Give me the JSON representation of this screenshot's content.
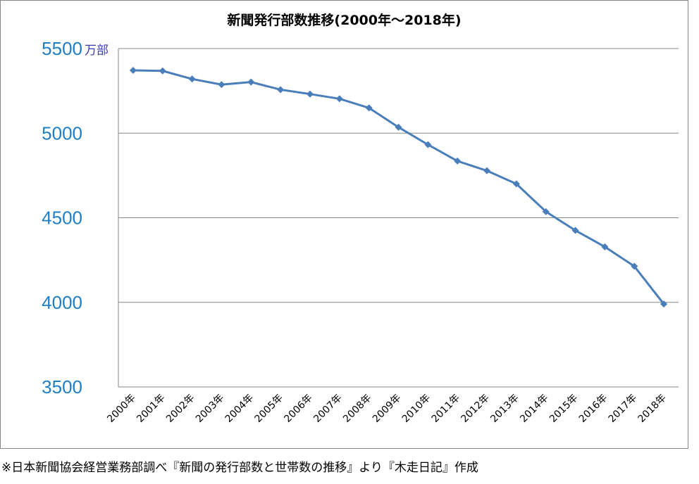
{
  "chart_data": {
    "type": "line",
    "title": "新聞発行部数推移(2000年～2018年)",
    "xlabel": "",
    "ylabel": "",
    "y_unit": "万部",
    "categories": [
      "2000年",
      "2001年",
      "2002年",
      "2003年",
      "2004年",
      "2005年",
      "2006年",
      "2007年",
      "2008年",
      "2009年",
      "2010年",
      "2011年",
      "2012年",
      "2013年",
      "2014年",
      "2015年",
      "2016年",
      "2017年",
      "2018年"
    ],
    "series": [
      {
        "name": "新聞発行部数",
        "color": "#4a7ebb",
        "marker": "diamond",
        "values": [
          5371,
          5368,
          5320,
          5287,
          5302,
          5257,
          5231,
          5203,
          5149,
          5035,
          4932,
          4835,
          4778,
          4700,
          4536,
          4425,
          4328,
          4213,
          3990
        ]
      }
    ],
    "ylim": [
      3500,
      5500
    ],
    "yticks": [
      3500,
      4000,
      4500,
      5000,
      5500
    ],
    "grid": true,
    "legend": "none"
  },
  "footnote": "※日本新聞協会経営業務部調べ『新聞の発行部数と世帯数の推移』より『木走日記』作成"
}
